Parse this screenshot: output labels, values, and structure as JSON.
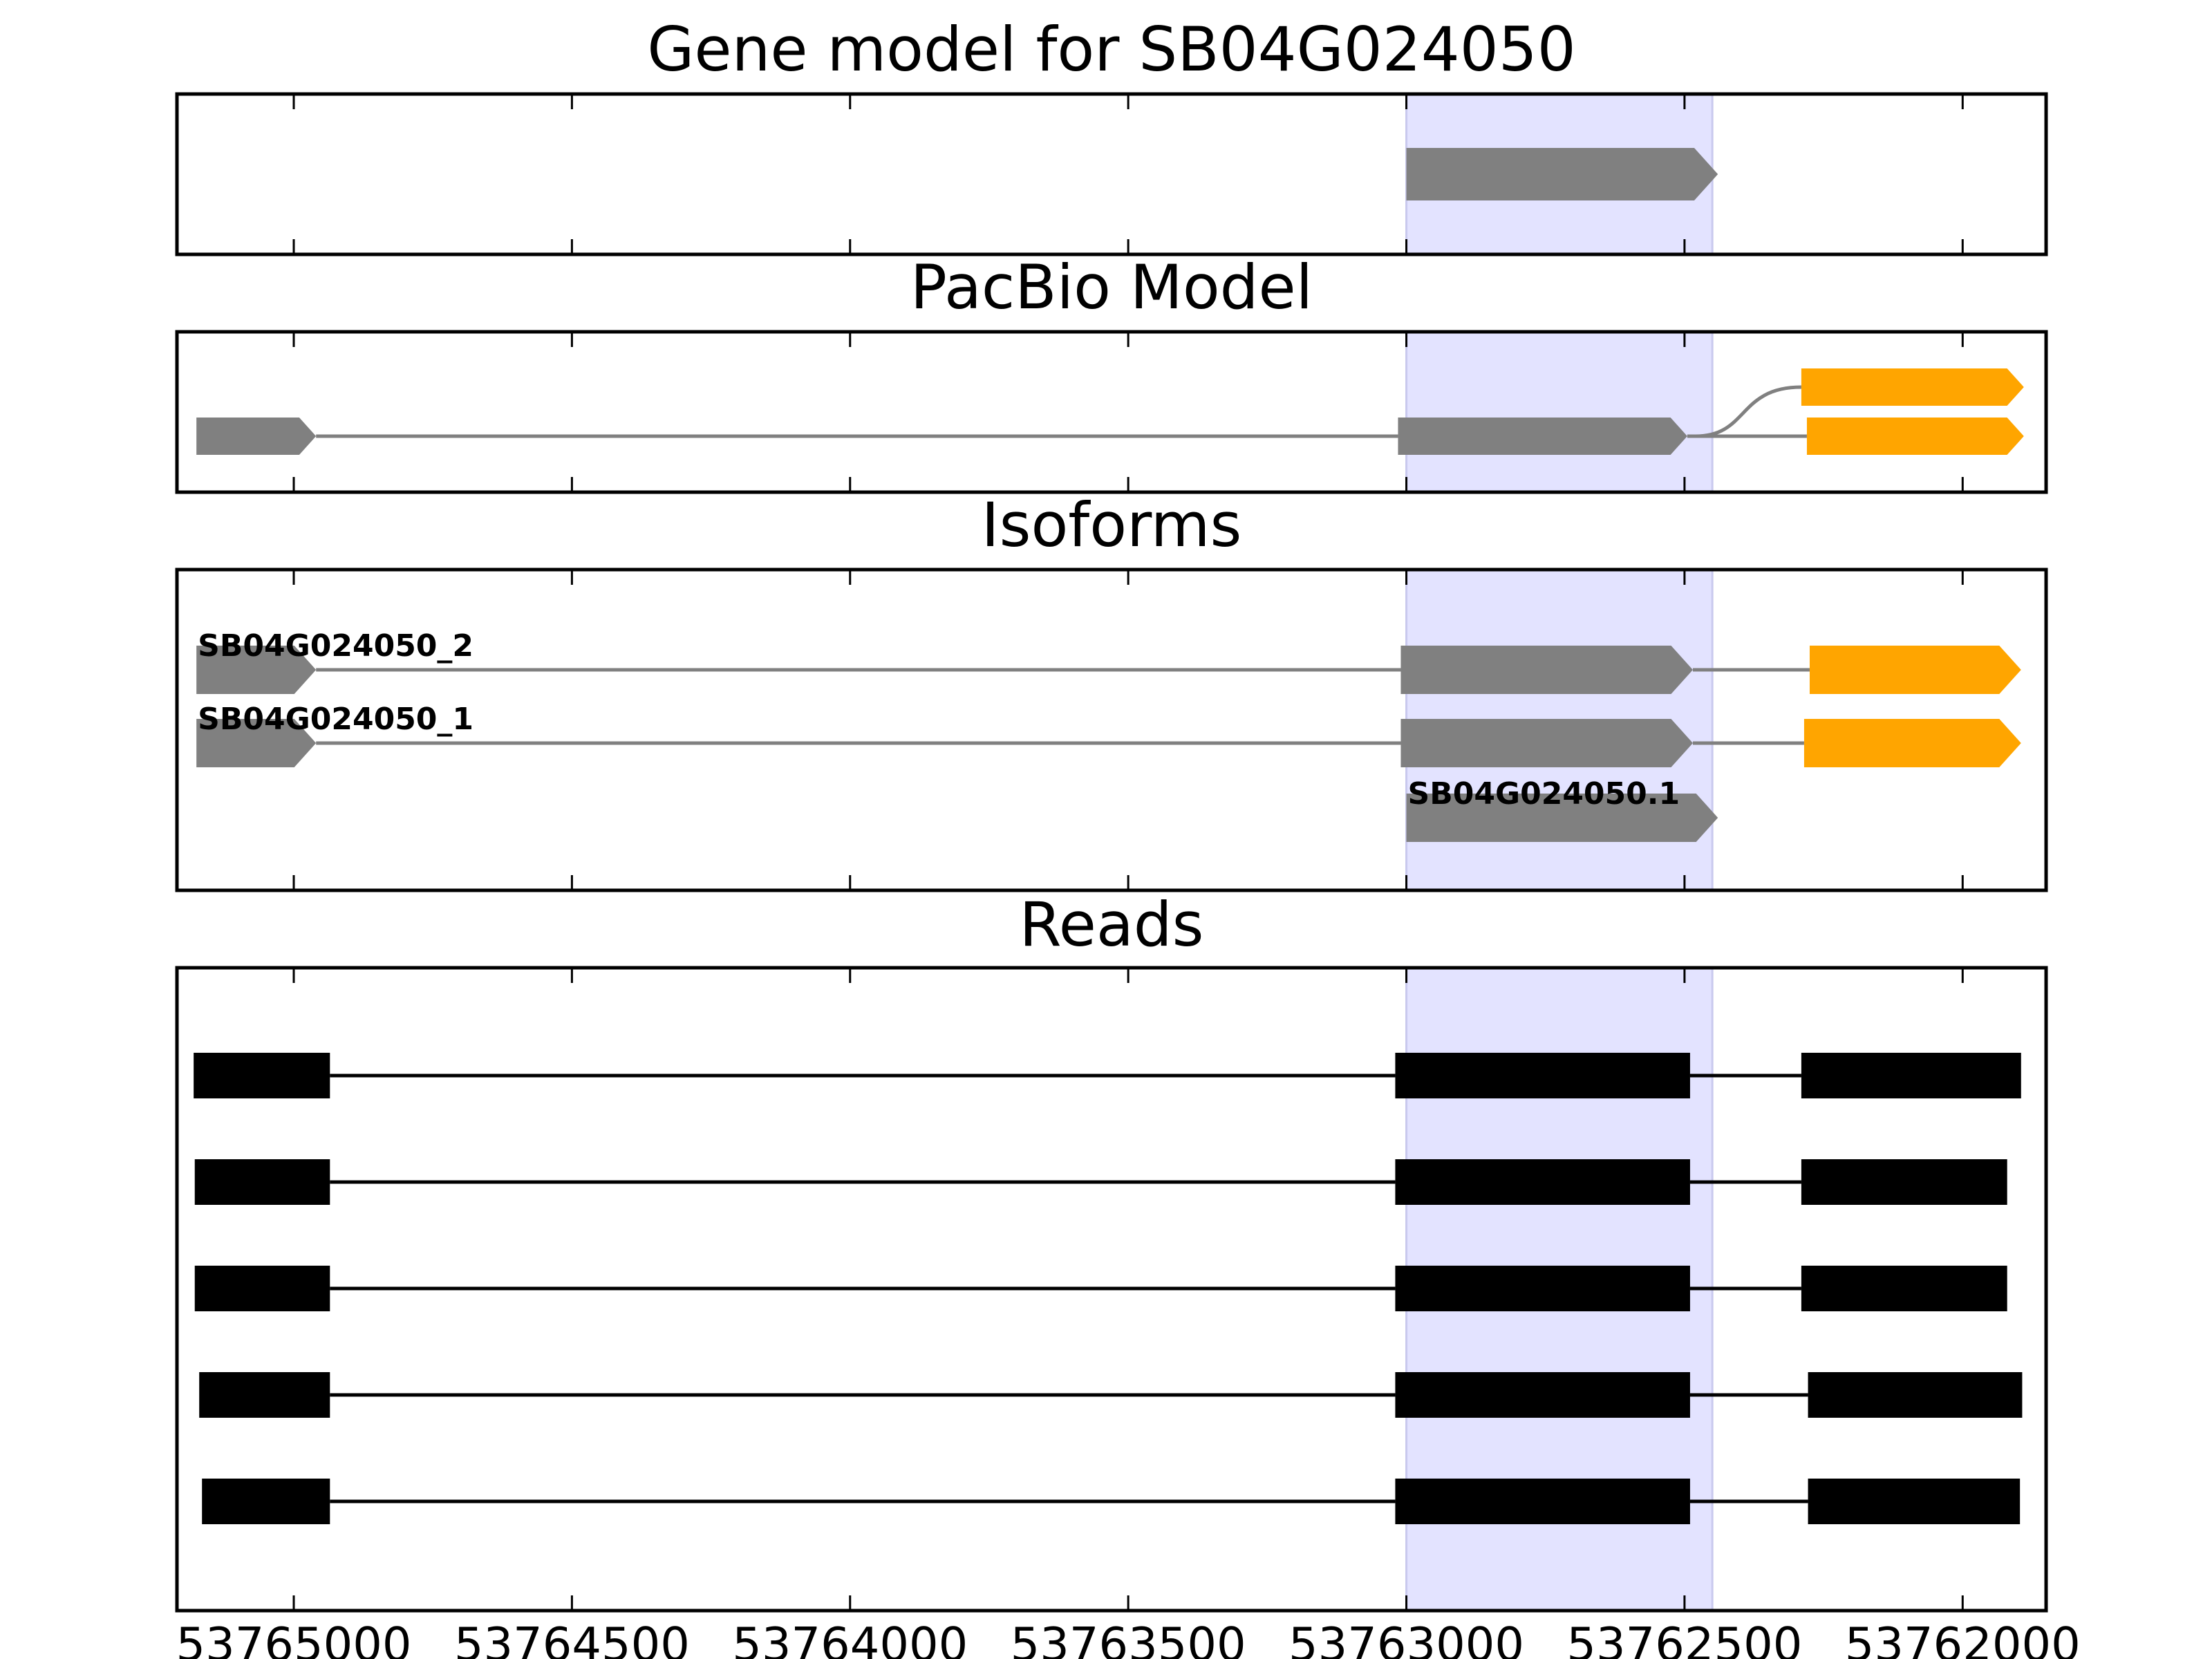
{
  "chart_data": {
    "type": "gene-track",
    "x_axis": {
      "inverted": true,
      "range": [
        53765210,
        53761850
      ],
      "ticks": [
        53765000,
        53764500,
        53764000,
        53763500,
        53763000,
        53762500,
        53762000
      ],
      "tick_labels": [
        "53765000",
        "53764500",
        "53764000",
        "53763500",
        "53763000",
        "53762500",
        "53762000"
      ]
    },
    "highlight_region": {
      "start": 53763000,
      "end": 53762450,
      "color": "#e3e3ff"
    },
    "colors": {
      "gene": "#808080",
      "utr": "#ffa500",
      "read": "#000000",
      "intron": "#808080",
      "read_intron": "#000000"
    },
    "panels": [
      {
        "key": "gene_model",
        "title": "Gene model for SB04G024050",
        "tracks": [
          {
            "label": "",
            "exons": [
              {
                "start": 53763000,
                "end": 53762440,
                "color": "gene",
                "arrow": true
              }
            ]
          }
        ]
      },
      {
        "key": "pacbio",
        "title": "PacBio Model",
        "tracks": [
          {
            "label": "",
            "exons": [
              {
                "start": 53765175,
                "end": 53764960,
                "color": "gene",
                "arrow": true
              },
              {
                "start": 53763015,
                "end": 53762495,
                "color": "gene",
                "arrow": true
              },
              {
                "start": 53762280,
                "end": 53761890,
                "color": "utr",
                "arrow": true
              }
            ]
          },
          {
            "label": "",
            "branch_from": 53762480,
            "exons": [
              {
                "start": 53762290,
                "end": 53761890,
                "color": "utr",
                "arrow": true
              }
            ]
          }
        ]
      },
      {
        "key": "isoforms",
        "title": "Isoforms",
        "tracks": [
          {
            "label": "SB04G024050_2",
            "exons": [
              {
                "start": 53765175,
                "end": 53764960,
                "color": "gene",
                "arrow": true
              },
              {
                "start": 53763010,
                "end": 53762485,
                "color": "gene",
                "arrow": true
              },
              {
                "start": 53762275,
                "end": 53761895,
                "color": "utr",
                "arrow": true
              }
            ]
          },
          {
            "label": "SB04G024050_1",
            "exons": [
              {
                "start": 53765175,
                "end": 53764960,
                "color": "gene",
                "arrow": true
              },
              {
                "start": 53763010,
                "end": 53762485,
                "color": "gene",
                "arrow": true
              },
              {
                "start": 53762285,
                "end": 53761895,
                "color": "utr",
                "arrow": true
              }
            ]
          },
          {
            "label": "SB04G024050.1",
            "exons": [
              {
                "start": 53763000,
                "end": 53762440,
                "color": "gene",
                "arrow": true
              }
            ]
          }
        ]
      },
      {
        "key": "reads",
        "title": "Reads",
        "tracks": [
          {
            "label": "",
            "exons": [
              {
                "start": 53765180,
                "end": 53764935,
                "color": "read"
              },
              {
                "start": 53763020,
                "end": 53762490,
                "color": "read"
              },
              {
                "start": 53762290,
                "end": 53761895,
                "color": "read"
              }
            ]
          },
          {
            "label": "",
            "exons": [
              {
                "start": 53765178,
                "end": 53764935,
                "color": "read"
              },
              {
                "start": 53763020,
                "end": 53762490,
                "color": "read"
              },
              {
                "start": 53762290,
                "end": 53761920,
                "color": "read"
              }
            ]
          },
          {
            "label": "",
            "exons": [
              {
                "start": 53765178,
                "end": 53764935,
                "color": "read"
              },
              {
                "start": 53763020,
                "end": 53762490,
                "color": "read"
              },
              {
                "start": 53762290,
                "end": 53761920,
                "color": "read"
              }
            ]
          },
          {
            "label": "",
            "exons": [
              {
                "start": 53765170,
                "end": 53764935,
                "color": "read"
              },
              {
                "start": 53763020,
                "end": 53762490,
                "color": "read"
              },
              {
                "start": 53762278,
                "end": 53761893,
                "color": "read"
              }
            ]
          },
          {
            "label": "",
            "exons": [
              {
                "start": 53765165,
                "end": 53764935,
                "color": "read"
              },
              {
                "start": 53763020,
                "end": 53762490,
                "color": "read"
              },
              {
                "start": 53762278,
                "end": 53761897,
                "color": "read"
              }
            ]
          }
        ]
      }
    ]
  }
}
